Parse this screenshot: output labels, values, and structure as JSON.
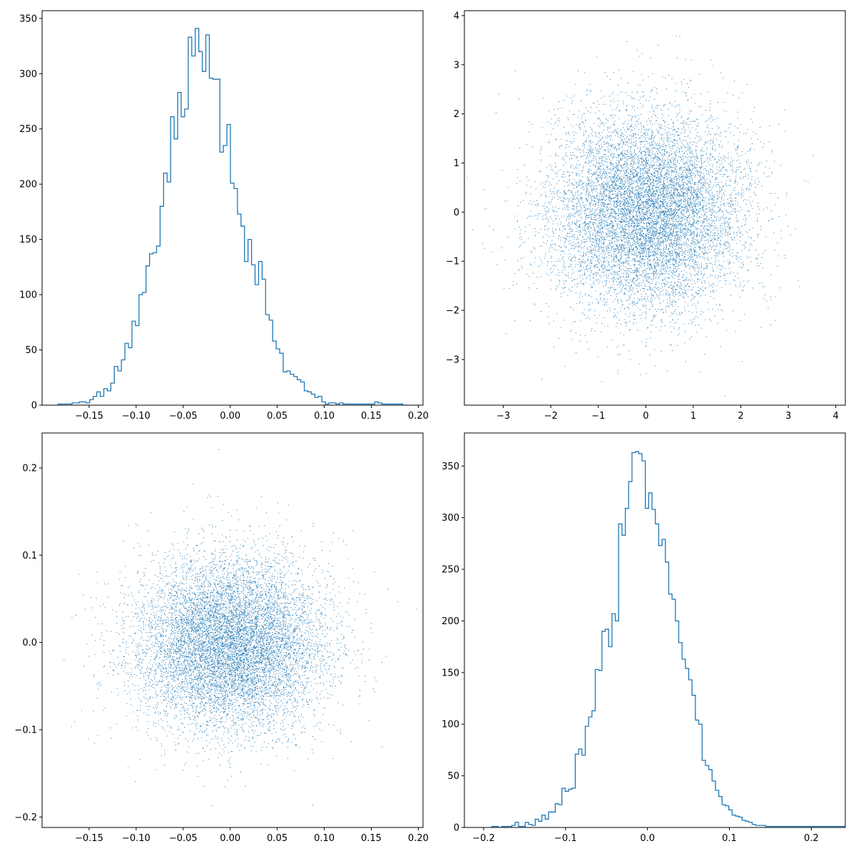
{
  "chart_data": [
    {
      "type": "histogram",
      "histtype": "step",
      "color": "#1f77b4",
      "title": "",
      "xlabel": "",
      "ylabel": "",
      "xlim": [
        -0.2,
        0.205
      ],
      "ylim": [
        0,
        357
      ],
      "xticks": [
        -0.15,
        -0.1,
        -0.05,
        0.0,
        0.05,
        0.1,
        0.15,
        0.2
      ],
      "xtick_labels": [
        "−0.15",
        "−0.10",
        "−0.05",
        "0.00",
        "0.05",
        "0.10",
        "0.15",
        "0.20"
      ],
      "yticks": [
        0,
        50,
        100,
        150,
        200,
        250,
        300,
        350
      ],
      "ytick_labels": [
        "0",
        "50",
        "100",
        "150",
        "200",
        "250",
        "300",
        "350"
      ],
      "bin_start": -0.183,
      "bin_width": 0.00374,
      "counts": [
        1,
        1,
        1,
        1,
        2,
        2,
        3,
        3,
        2,
        5,
        8,
        12,
        8,
        15,
        13,
        20,
        35,
        31,
        41,
        56,
        52,
        76,
        72,
        100,
        102,
        126,
        137,
        138,
        144,
        180,
        210,
        202,
        261,
        241,
        283,
        261,
        268,
        333,
        316,
        341,
        320,
        302,
        335,
        296,
        295,
        295,
        229,
        235,
        254,
        201,
        196,
        173,
        162,
        130,
        150,
        127,
        109,
        130,
        114,
        82,
        77,
        58,
        51,
        47,
        30,
        31,
        28,
        26,
        23,
        21,
        13,
        12,
        10,
        7,
        8,
        3,
        1,
        2,
        2,
        1,
        2,
        1,
        1,
        1,
        1,
        1,
        1,
        1,
        1,
        1,
        3,
        2,
        1,
        1,
        1,
        1,
        1,
        1
      ]
    },
    {
      "type": "scatter",
      "marker": "pixel",
      "color": "#1f77b4",
      "title": "",
      "xlabel": "",
      "ylabel": "",
      "n_points": 10000,
      "distribution": {
        "x_mean": 0.0,
        "x_std": 1.0,
        "y_mean": 0.0,
        "y_std": 1.0
      },
      "xlim": [
        -3.82,
        4.2
      ],
      "ylim": [
        -3.93,
        4.1
      ],
      "xticks": [
        -3,
        -2,
        -1,
        0,
        1,
        2,
        3,
        4
      ],
      "xtick_labels": [
        "−3",
        "−2",
        "−1",
        "0",
        "1",
        "2",
        "3",
        "4"
      ],
      "yticks": [
        -3,
        -2,
        -1,
        0,
        1,
        2,
        3,
        4
      ],
      "ytick_labels": [
        "−3",
        "−2",
        "−1",
        "0",
        "1",
        "2",
        "3",
        "4"
      ]
    },
    {
      "type": "scatter",
      "marker": "pixel",
      "color": "#1f77b4",
      "title": "",
      "xlabel": "",
      "ylabel": "",
      "n_points": 10000,
      "distribution": {
        "x_mean": 0.0,
        "x_std": 0.05,
        "y_mean": 0.0,
        "y_std": 0.05
      },
      "xlim": [
        -0.2,
        0.205
      ],
      "ylim": [
        -0.212,
        0.24
      ],
      "xticks": [
        -0.15,
        -0.1,
        -0.05,
        0.0,
        0.05,
        0.1,
        0.15,
        0.2
      ],
      "xtick_labels": [
        "−0.15",
        "−0.10",
        "−0.05",
        "0.00",
        "0.05",
        "0.10",
        "0.15",
        "0.20"
      ],
      "yticks": [
        -0.2,
        -0.1,
        0.0,
        0.1,
        0.2
      ],
      "ytick_labels": [
        "−0.2",
        "−0.1",
        "0.0",
        "0.1",
        "0.2"
      ]
    },
    {
      "type": "histogram",
      "histtype": "step",
      "color": "#1f77b4",
      "title": "",
      "xlabel": "",
      "ylabel": "",
      "xlim": [
        -0.2235,
        0.2415
      ],
      "ylim": [
        0,
        382
      ],
      "xticks": [
        -0.2,
        -0.1,
        0.0,
        0.1,
        0.2
      ],
      "xtick_labels": [
        "−0.2",
        "−0.1",
        "0.0",
        "0.1",
        "0.2"
      ],
      "yticks": [
        0,
        50,
        100,
        150,
        200,
        250,
        300,
        350
      ],
      "ytick_labels": [
        "0",
        "50",
        "100",
        "150",
        "200",
        "250",
        "300",
        "350"
      ],
      "bin_start": -0.19,
      "bin_width": 0.004074,
      "counts": [
        1,
        1,
        0,
        1,
        1,
        1,
        2,
        5,
        1,
        1,
        5,
        3,
        2,
        8,
        6,
        12,
        8,
        15,
        15,
        23,
        22,
        38,
        35,
        37,
        38,
        71,
        76,
        70,
        98,
        107,
        113,
        153,
        152,
        190,
        192,
        175,
        207,
        200,
        294,
        283,
        309,
        335,
        363,
        364,
        362,
        355,
        309,
        324,
        308,
        294,
        273,
        279,
        257,
        226,
        221,
        200,
        179,
        163,
        154,
        143,
        128,
        104,
        100,
        65,
        60,
        56,
        45,
        36,
        30,
        22,
        21,
        17,
        12,
        11,
        10,
        7,
        6,
        5,
        3,
        2,
        2,
        2,
        1,
        1,
        1,
        1,
        1,
        1,
        1,
        1,
        1,
        1,
        1,
        1,
        1,
        1,
        1,
        1,
        1,
        1,
        1,
        1,
        1,
        1,
        1,
        1,
        1,
        1,
        1,
        1,
        1,
        1,
        1,
        1
      ]
    }
  ]
}
